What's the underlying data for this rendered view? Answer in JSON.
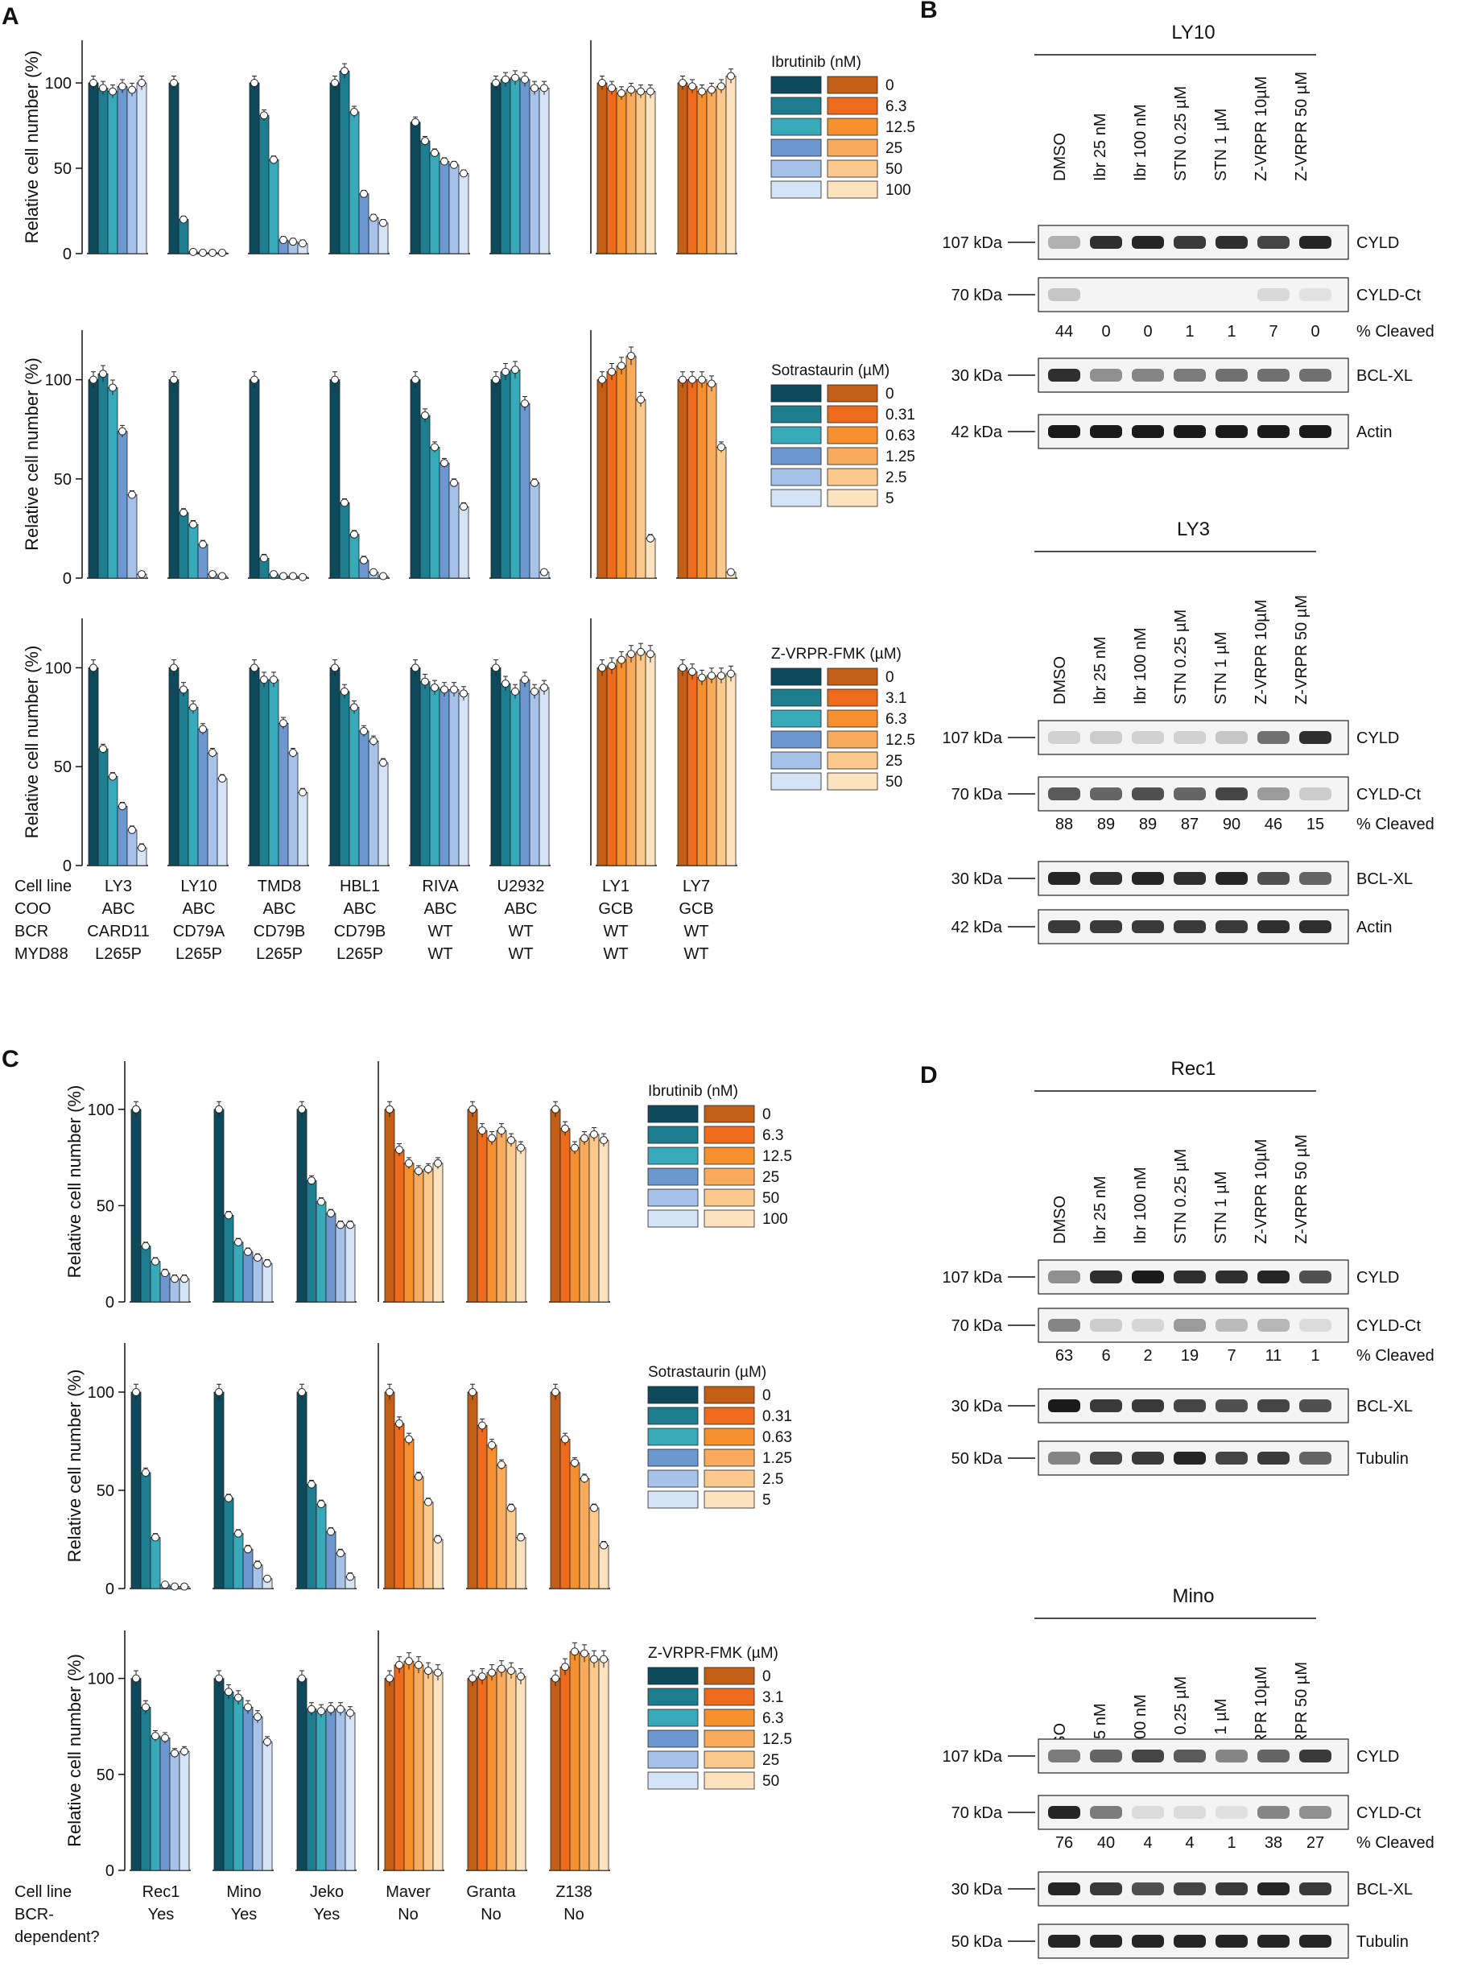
{
  "panel_labels": {
    "A": "A",
    "B": "B",
    "C": "C",
    "D": "D"
  },
  "ylabel": "Relative cell number (%)",
  "y_ticks": [
    "0",
    "50",
    "100"
  ],
  "colors": {
    "abc": [
      "#0f4a5c",
      "#1f7d90",
      "#38a9b9",
      "#6d97cf",
      "#a7c2e8",
      "#d4e3f5"
    ],
    "gcb": [
      "#c25e15",
      "#ee6a1c",
      "#f68f2e",
      "#f8ab5c",
      "#fbc98c",
      "#fde2bf"
    ]
  },
  "legends": {
    "ibrutinib": {
      "title": "Ibrutinib (nM)",
      "doses": [
        "0",
        "6.3",
        "12.5",
        "25",
        "50",
        "100"
      ]
    },
    "sotrastaurin": {
      "title": "Sotrastaurin (µM)",
      "doses": [
        "0",
        "0.31",
        "0.63",
        "1.25",
        "2.5",
        "5"
      ]
    },
    "zvrpr": {
      "title": "Z-VRPR-FMK (µM)",
      "doses": [
        "0",
        "3.1",
        "6.3",
        "12.5",
        "25",
        "50"
      ]
    }
  },
  "table_A": {
    "row_labels": [
      "Cell line",
      "COO",
      "BCR",
      "MYD88"
    ],
    "columns": [
      [
        "LY3",
        "ABC",
        "CARD11",
        "L265P"
      ],
      [
        "LY10",
        "ABC",
        "CD79A",
        "L265P"
      ],
      [
        "TMD8",
        "ABC",
        "CD79B",
        "L265P"
      ],
      [
        "HBL1",
        "ABC",
        "CD79B",
        "L265P"
      ],
      [
        "RIVA",
        "ABC",
        "WT",
        "WT"
      ],
      [
        "U2932",
        "ABC",
        "WT",
        "WT"
      ],
      [
        "LY1",
        "GCB",
        "WT",
        "WT"
      ],
      [
        "LY7",
        "GCB",
        "WT",
        "WT"
      ]
    ]
  },
  "table_C": {
    "row_labels": [
      "Cell line",
      "BCR-",
      "dependent?"
    ],
    "columns": [
      [
        "Rec1",
        "Yes"
      ],
      [
        "Mino",
        "Yes"
      ],
      [
        "Jeko",
        "Yes"
      ],
      [
        "Maver",
        "No"
      ],
      [
        "Granta",
        "No"
      ],
      [
        "Z138",
        "No"
      ]
    ]
  },
  "chart_data": [
    {
      "id": "A-ibrutinib",
      "type": "bar",
      "ylabel": "Relative cell number (%)",
      "ylim": [
        0,
        125
      ],
      "legend": "ibrutinib",
      "groups": [
        {
          "name": "LY3",
          "kind": "abc",
          "values": [
            100,
            97,
            95,
            98,
            96,
            100
          ]
        },
        {
          "name": "LY10",
          "kind": "abc",
          "values": [
            100,
            20,
            1,
            0.5,
            0.5,
            0.5
          ]
        },
        {
          "name": "TMD8",
          "kind": "abc",
          "values": [
            100,
            81,
            55,
            8,
            7,
            6
          ]
        },
        {
          "name": "HBL1",
          "kind": "abc",
          "values": [
            100,
            107,
            83,
            35,
            21,
            18
          ]
        },
        {
          "name": "RIVA",
          "kind": "abc",
          "values": [
            77,
            66,
            59,
            54,
            52,
            47
          ]
        },
        {
          "name": "U2932",
          "kind": "abc",
          "values": [
            100,
            102,
            103,
            102,
            97,
            97
          ]
        },
        {
          "name": "LY1",
          "kind": "gcb",
          "values": [
            100,
            97,
            94,
            96,
            95,
            95
          ]
        },
        {
          "name": "LY7",
          "kind": "gcb",
          "values": [
            100,
            98,
            95,
            96,
            98,
            104
          ]
        }
      ]
    },
    {
      "id": "A-sotrastaurin",
      "type": "bar",
      "ylabel": "Relative cell number (%)",
      "ylim": [
        0,
        125
      ],
      "legend": "sotrastaurin",
      "groups": [
        {
          "name": "LY3",
          "kind": "abc",
          "values": [
            100,
            103,
            96,
            74,
            42,
            2
          ]
        },
        {
          "name": "LY10",
          "kind": "abc",
          "values": [
            100,
            33,
            27,
            17,
            2,
            1
          ]
        },
        {
          "name": "TMD8",
          "kind": "abc",
          "values": [
            100,
            10,
            2,
            1,
            1,
            0.5
          ]
        },
        {
          "name": "HBL1",
          "kind": "abc",
          "values": [
            100,
            38,
            22,
            9,
            3,
            1
          ]
        },
        {
          "name": "RIVA",
          "kind": "abc",
          "values": [
            100,
            82,
            66,
            58,
            48,
            36
          ]
        },
        {
          "name": "U2932",
          "kind": "abc",
          "values": [
            100,
            104,
            105,
            88,
            48,
            3
          ]
        },
        {
          "name": "LY1",
          "kind": "gcb",
          "values": [
            100,
            104,
            107,
            112,
            90,
            20
          ]
        },
        {
          "name": "LY7",
          "kind": "gcb",
          "values": [
            100,
            100,
            100,
            98,
            66,
            3
          ]
        }
      ]
    },
    {
      "id": "A-zvrpr",
      "type": "bar",
      "ylabel": "Relative cell number (%)",
      "ylim": [
        0,
        125
      ],
      "legend": "zvrpr",
      "groups": [
        {
          "name": "LY3",
          "kind": "abc",
          "values": [
            100,
            59,
            45,
            30,
            18,
            9
          ]
        },
        {
          "name": "LY10",
          "kind": "abc",
          "values": [
            100,
            89,
            80,
            69,
            57,
            44
          ]
        },
        {
          "name": "TMD8",
          "kind": "abc",
          "values": [
            100,
            94,
            94,
            72,
            57,
            37
          ]
        },
        {
          "name": "HBL1",
          "kind": "abc",
          "values": [
            100,
            88,
            80,
            68,
            63,
            52
          ]
        },
        {
          "name": "RIVA",
          "kind": "abc",
          "values": [
            100,
            93,
            90,
            89,
            89,
            87
          ]
        },
        {
          "name": "U2932",
          "kind": "abc",
          "values": [
            100,
            92,
            88,
            94,
            88,
            90
          ]
        },
        {
          "name": "LY1",
          "kind": "gcb",
          "values": [
            100,
            101,
            104,
            107,
            108,
            107
          ]
        },
        {
          "name": "LY7",
          "kind": "gcb",
          "values": [
            100,
            98,
            95,
            96,
            96,
            97
          ]
        }
      ]
    },
    {
      "id": "C-ibrutinib",
      "type": "bar",
      "ylabel": "Relative cell number (%)",
      "ylim": [
        0,
        125
      ],
      "legend": "ibrutinib",
      "groups": [
        {
          "name": "Rec1",
          "kind": "abc",
          "values": [
            100,
            29,
            21,
            15,
            12,
            12
          ]
        },
        {
          "name": "Mino",
          "kind": "abc",
          "values": [
            100,
            45,
            31,
            26,
            23,
            20
          ]
        },
        {
          "name": "Jeko",
          "kind": "abc",
          "values": [
            100,
            63,
            52,
            46,
            40,
            40
          ]
        },
        {
          "name": "Maver",
          "kind": "gcb",
          "values": [
            100,
            79,
            72,
            68,
            69,
            72
          ]
        },
        {
          "name": "Granta",
          "kind": "gcb",
          "values": [
            100,
            89,
            85,
            89,
            84,
            80
          ]
        },
        {
          "name": "Z138",
          "kind": "gcb",
          "values": [
            100,
            90,
            80,
            85,
            87,
            84
          ]
        }
      ]
    },
    {
      "id": "C-sotrastaurin",
      "type": "bar",
      "ylabel": "Relative cell number (%)",
      "ylim": [
        0,
        125
      ],
      "legend": "sotrastaurin",
      "groups": [
        {
          "name": "Rec1",
          "kind": "abc",
          "values": [
            100,
            59,
            26,
            2,
            1,
            1
          ]
        },
        {
          "name": "Mino",
          "kind": "abc",
          "values": [
            100,
            46,
            28,
            20,
            12,
            5
          ]
        },
        {
          "name": "Jeko",
          "kind": "abc",
          "values": [
            100,
            53,
            43,
            29,
            18,
            6
          ]
        },
        {
          "name": "Maver",
          "kind": "gcb",
          "values": [
            100,
            84,
            76,
            57,
            44,
            25
          ]
        },
        {
          "name": "Granta",
          "kind": "gcb",
          "values": [
            100,
            83,
            73,
            63,
            41,
            26
          ]
        },
        {
          "name": "Z138",
          "kind": "gcb",
          "values": [
            100,
            76,
            64,
            56,
            41,
            22
          ]
        }
      ]
    },
    {
      "id": "C-zvrpr",
      "type": "bar",
      "ylabel": "Relative cell number (%)",
      "ylim": [
        0,
        125
      ],
      "legend": "zvrpr",
      "groups": [
        {
          "name": "Rec1",
          "kind": "abc",
          "values": [
            100,
            85,
            70,
            69,
            61,
            62
          ]
        },
        {
          "name": "Mino",
          "kind": "abc",
          "values": [
            100,
            93,
            90,
            85,
            80,
            67
          ]
        },
        {
          "name": "Jeko",
          "kind": "abc",
          "values": [
            100,
            84,
            83,
            84,
            84,
            82
          ]
        },
        {
          "name": "Maver",
          "kind": "gcb",
          "values": [
            100,
            107,
            109,
            107,
            104,
            103
          ]
        },
        {
          "name": "Granta",
          "kind": "gcb",
          "values": [
            100,
            101,
            103,
            105,
            104,
            101
          ]
        },
        {
          "name": "Z138",
          "kind": "gcb",
          "values": [
            100,
            106,
            114,
            113,
            110,
            110
          ]
        }
      ]
    }
  ],
  "western_lanes": [
    "DMSO",
    "Ibr 25 nM",
    "Ibr 100 nM",
    "STN 0.25 µM",
    "STN 1 µM",
    "Z-VRPR 10µM",
    "Z-VRPR 50 µM"
  ],
  "western_blots": [
    {
      "cell_line": "LY10",
      "rows": [
        {
          "kda": "107 kDa",
          "label": "CYLD",
          "intensity": [
            0.25,
            0.85,
            0.9,
            0.8,
            0.85,
            0.75,
            0.9
          ]
        },
        {
          "kda": "70 kDa",
          "label": "CYLD-Ct",
          "intensity": [
            0.15,
            0,
            0,
            0,
            0,
            0.06,
            0.02
          ]
        }
      ],
      "cleaved": [
        "44",
        "0",
        "0",
        "1",
        "1",
        "7",
        "0"
      ],
      "rows2": [
        {
          "kda": "30 kDa",
          "label": "BCL-XL",
          "intensity": [
            0.85,
            0.4,
            0.45,
            0.5,
            0.55,
            0.55,
            0.55
          ]
        },
        {
          "kda": "42 kDa",
          "label": "Actin",
          "intensity": [
            0.95,
            0.95,
            0.95,
            0.95,
            0.95,
            0.95,
            0.95
          ]
        }
      ]
    },
    {
      "cell_line": "LY3",
      "rows": [
        {
          "kda": "107 kDa",
          "label": "CYLD",
          "intensity": [
            0.1,
            0.12,
            0.1,
            0.1,
            0.15,
            0.55,
            0.85
          ]
        },
        {
          "kda": "70 kDa",
          "label": "CYLD-Ct",
          "intensity": [
            0.65,
            0.6,
            0.7,
            0.6,
            0.75,
            0.35,
            0.12
          ]
        }
      ],
      "cleaved": [
        "88",
        "89",
        "89",
        "87",
        "90",
        "46",
        "15"
      ],
      "rows2": [
        {
          "kda": "30 kDa",
          "label": "BCL-XL",
          "intensity": [
            0.9,
            0.85,
            0.9,
            0.85,
            0.9,
            0.7,
            0.6
          ]
        },
        {
          "kda": "42 kDa",
          "label": "Actin",
          "intensity": [
            0.8,
            0.8,
            0.8,
            0.8,
            0.8,
            0.85,
            0.85
          ]
        }
      ]
    },
    {
      "cell_line": "Rec1",
      "rows": [
        {
          "kda": "107 kDa",
          "label": "CYLD",
          "intensity": [
            0.4,
            0.85,
            0.95,
            0.85,
            0.85,
            0.9,
            0.7
          ]
        },
        {
          "kda": "70 kDa",
          "label": "CYLD-Ct",
          "intensity": [
            0.45,
            0.12,
            0.08,
            0.35,
            0.2,
            0.22,
            0.05
          ]
        }
      ],
      "cleaved": [
        "63",
        "6",
        "2",
        "19",
        "7",
        "11",
        "1"
      ],
      "rows2": [
        {
          "kda": "30 kDa",
          "label": "BCL-XL",
          "intensity": [
            0.95,
            0.8,
            0.8,
            0.75,
            0.7,
            0.75,
            0.7
          ]
        },
        {
          "kda": "50 kDa",
          "label": "Tubulin",
          "intensity": [
            0.45,
            0.75,
            0.8,
            0.9,
            0.75,
            0.8,
            0.6
          ]
        }
      ]
    },
    {
      "cell_line": "Mino",
      "rows": [
        {
          "kda": "107 kDa",
          "label": "CYLD",
          "intensity": [
            0.5,
            0.6,
            0.75,
            0.65,
            0.45,
            0.6,
            0.8
          ]
        },
        {
          "kda": "70 kDa",
          "label": "CYLD-Ct",
          "intensity": [
            0.9,
            0.5,
            0.05,
            0.05,
            0.03,
            0.45,
            0.4
          ]
        }
      ],
      "cleaved": [
        "76",
        "40",
        "4",
        "4",
        "1",
        "38",
        "27"
      ],
      "rows2": [
        {
          "kda": "30 kDa",
          "label": "BCL-XL",
          "intensity": [
            0.9,
            0.8,
            0.7,
            0.75,
            0.8,
            0.9,
            0.8
          ]
        },
        {
          "kda": "50 kDa",
          "label": "Tubulin",
          "intensity": [
            0.9,
            0.9,
            0.9,
            0.9,
            0.9,
            0.9,
            0.9
          ]
        }
      ]
    }
  ],
  "cleaved_label": "% Cleaved"
}
